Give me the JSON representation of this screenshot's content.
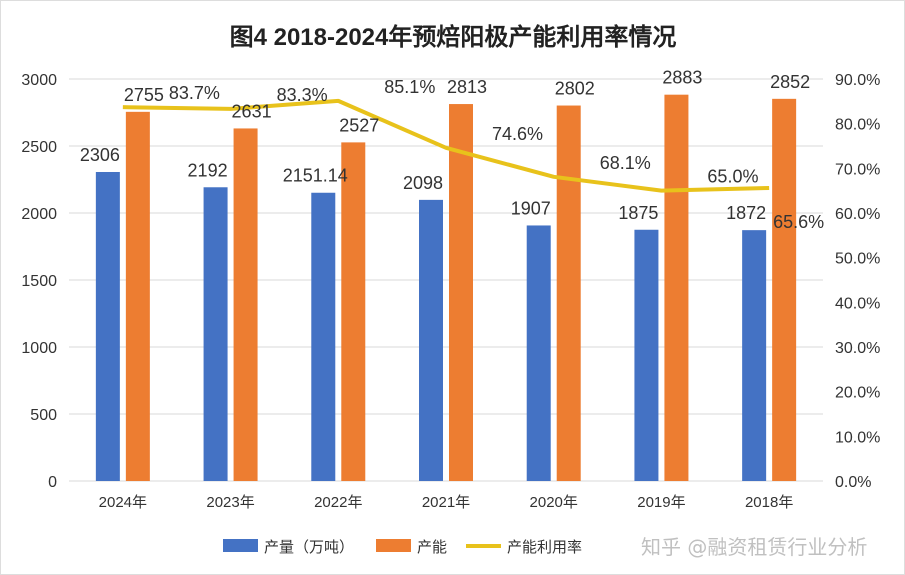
{
  "chart_data": {
    "type": "bar",
    "title": "图4 2018-2024年预焙阳极产能利用率情况",
    "categories": [
      "2024年",
      "2023年",
      "2022年",
      "2021年",
      "2020年",
      "2019年",
      "2018年"
    ],
    "series": [
      {
        "name": "产量（万吨）",
        "type": "bar",
        "axis": "left",
        "color": "#4472C4",
        "values": [
          2306,
          2192,
          2151.14,
          2098,
          1907,
          1875,
          1872
        ],
        "labels": [
          "2306",
          "2192",
          "2151.14",
          "2098",
          "1907",
          "1875",
          "1872"
        ]
      },
      {
        "name": "产能",
        "type": "bar",
        "axis": "left",
        "color": "#ED7D31",
        "values": [
          2755,
          2631,
          2527,
          2813,
          2802,
          2883,
          2852
        ],
        "labels": [
          "2755",
          "2631",
          "2527",
          "2813",
          "2802",
          "2883",
          "2852"
        ]
      },
      {
        "name": "产能利用率",
        "type": "line",
        "axis": "right",
        "color": "#E8C21B",
        "values": [
          83.7,
          83.3,
          85.1,
          74.6,
          68.1,
          65.0,
          65.6
        ],
        "labels": [
          "83.7%",
          "83.3%",
          "85.1%",
          "74.6%",
          "68.1%",
          "65.0%",
          "65.6%"
        ]
      }
    ],
    "y_left": {
      "min": 0,
      "max": 3000,
      "step": 500,
      "ticks": [
        "0",
        "500",
        "1000",
        "1500",
        "2000",
        "2500",
        "3000"
      ]
    },
    "y_right": {
      "min": 0,
      "max": 90,
      "step": 10,
      "ticks": [
        "0.0%",
        "10.0%",
        "20.0%",
        "30.0%",
        "40.0%",
        "50.0%",
        "60.0%",
        "70.0%",
        "80.0%",
        "90.0%"
      ]
    },
    "grid": true,
    "legend": "bottom"
  },
  "watermark": "知乎 @融资租赁行业分析"
}
